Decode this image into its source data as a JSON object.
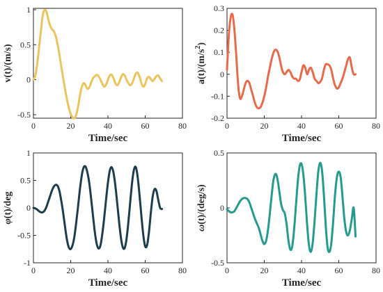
{
  "chart_data": [
    {
      "type": "line",
      "ylabel": "v(t)/(m/s)",
      "xlabel": "Time/sec",
      "xlim": [
        0,
        80
      ],
      "ylim": [
        -0.55,
        1.02
      ],
      "xticks": [
        0,
        20,
        40,
        60,
        80
      ],
      "yticks": [
        -0.5,
        0,
        0.5,
        1
      ],
      "ytick_labels": [
        "-0.5",
        "0",
        "0.5",
        "1"
      ],
      "color": "#EDC35C",
      "x": [
        0,
        1,
        2,
        3,
        4,
        5,
        6,
        7,
        8,
        9,
        10,
        11,
        12,
        13,
        14,
        15,
        16,
        17,
        18,
        19,
        20,
        21,
        22,
        23,
        24,
        25,
        26,
        27,
        28,
        29,
        30,
        31,
        32,
        33,
        34,
        35,
        36,
        37,
        38,
        39,
        40,
        41,
        42,
        43,
        44,
        45,
        46,
        47,
        48,
        49,
        50,
        51,
        52,
        53,
        54,
        55,
        56,
        57,
        58,
        59,
        60,
        61,
        62,
        63,
        64,
        65,
        66,
        67,
        68,
        69
      ],
      "y": [
        0,
        0.06,
        0.22,
        0.45,
        0.7,
        0.92,
        1.0,
        0.97,
        0.86,
        0.77,
        0.72,
        0.69,
        0.62,
        0.5,
        0.35,
        0.18,
        0.02,
        -0.14,
        -0.28,
        -0.4,
        -0.49,
        -0.54,
        -0.55,
        -0.5,
        -0.38,
        -0.22,
        -0.1,
        -0.05,
        -0.08,
        -0.13,
        -0.11,
        -0.04,
        0.02,
        0.05,
        0.07,
        0.05,
        0.0,
        -0.06,
        -0.1,
        -0.07,
        0.0,
        0.06,
        0.07,
        0.02,
        -0.05,
        -0.08,
        -0.04,
        0.03,
        0.08,
        0.06,
        0.0,
        -0.05,
        -0.08,
        -0.05,
        0.02,
        0.09,
        0.1,
        0.04,
        -0.05,
        -0.1,
        -0.06,
        0.02,
        0.04,
        0.01,
        -0.02,
        0.01,
        0.05,
        0.06,
        0.02,
        -0.02
      ]
    },
    {
      "type": "line",
      "ylabel": "a(t)/(m/s2)",
      "ylabel_main": "a(t)/(m/s",
      "ylabel_sup": "2",
      "ylabel_end": ")",
      "xlabel": "Time/sec",
      "xlim": [
        0,
        80
      ],
      "ylim": [
        -0.2,
        0.3
      ],
      "xticks": [
        0,
        20,
        40,
        60,
        80
      ],
      "yticks": [
        -0.2,
        -0.1,
        0,
        0.1,
        0.2,
        0.3
      ],
      "ytick_labels": [
        "-0.2",
        "-0.1",
        "0",
        "0.1",
        "0.2",
        "0.3"
      ],
      "color": "#E96A4B",
      "x": [
        0,
        1,
        2,
        3,
        4,
        5,
        6,
        7,
        8,
        9,
        10,
        11,
        12,
        13,
        14,
        15,
        16,
        17,
        18,
        19,
        20,
        21,
        22,
        23,
        24,
        25,
        26,
        27,
        28,
        29,
        30,
        31,
        32,
        33,
        34,
        35,
        36,
        37,
        38,
        39,
        40,
        41,
        42,
        43,
        44,
        45,
        46,
        47,
        48,
        49,
        50,
        51,
        52,
        53,
        54,
        55,
        56,
        57,
        58,
        59,
        60,
        61,
        62,
        63,
        64,
        65,
        66,
        67,
        68,
        69
      ],
      "y": [
        0.02,
        0.18,
        0.26,
        0.27,
        0.2,
        0.08,
        -0.05,
        -0.11,
        -0.1,
        -0.07,
        -0.04,
        -0.03,
        -0.04,
        -0.07,
        -0.1,
        -0.13,
        -0.15,
        -0.155,
        -0.15,
        -0.13,
        -0.1,
        -0.06,
        -0.01,
        0.03,
        0.07,
        0.1,
        0.112,
        0.105,
        0.08,
        0.04,
        0.01,
        0.0,
        0.01,
        0.02,
        0.01,
        -0.01,
        -0.02,
        -0.02,
        -0.03,
        -0.025,
        0.01,
        0.04,
        0.03,
        0.0,
        0.02,
        0.03,
        0.01,
        -0.02,
        -0.03,
        -0.04,
        -0.035,
        -0.02,
        0.02,
        0.045,
        0.045,
        0.04,
        0.02,
        -0.02,
        -0.05,
        -0.065,
        -0.06,
        -0.04,
        -0.02,
        0.01,
        0.04,
        0.07,
        0.075,
        0.03,
        0.0,
        0.0
      ]
    },
    {
      "type": "line",
      "ylabel": "φ(t)/deg",
      "ylabel_sym": "φ",
      "ylabel_rest": "(t)/deg",
      "xlabel": "Time/sec",
      "xlim": [
        0,
        80
      ],
      "ylim": [
        -1,
        1
      ],
      "xticks": [
        0,
        20,
        40,
        60,
        80
      ],
      "yticks": [
        -1,
        -0.5,
        0,
        0.5,
        1
      ],
      "ytick_labels": [
        "-1",
        "-0.5",
        "0",
        "0.5",
        "1"
      ],
      "color": "#1C3D4D",
      "x": [
        0,
        1,
        2,
        3,
        4,
        5,
        6,
        7,
        8,
        9,
        10,
        11,
        12,
        13,
        14,
        15,
        16,
        17,
        18,
        19,
        20,
        21,
        22,
        23,
        24,
        25,
        26,
        27,
        28,
        29,
        30,
        31,
        32,
        33,
        34,
        35,
        36,
        37,
        38,
        39,
        40,
        41,
        42,
        43,
        44,
        45,
        46,
        47,
        48,
        49,
        50,
        51,
        52,
        53,
        54,
        55,
        56,
        57,
        58,
        59,
        60,
        61,
        62,
        63,
        64,
        65,
        66,
        67,
        68,
        69
      ],
      "y": [
        0,
        -0.01,
        -0.03,
        -0.06,
        -0.08,
        -0.08,
        -0.05,
        0.02,
        0.12,
        0.22,
        0.32,
        0.39,
        0.42,
        0.4,
        0.3,
        0.12,
        -0.1,
        -0.35,
        -0.58,
        -0.72,
        -0.75,
        -0.68,
        -0.52,
        -0.26,
        0.04,
        0.35,
        0.6,
        0.74,
        0.75,
        0.64,
        0.45,
        0.16,
        -0.15,
        -0.45,
        -0.66,
        -0.74,
        -0.68,
        -0.47,
        -0.18,
        0.15,
        0.46,
        0.68,
        0.74,
        0.64,
        0.4,
        0.08,
        -0.26,
        -0.55,
        -0.72,
        -0.73,
        -0.56,
        -0.25,
        0.12,
        0.47,
        0.7,
        0.74,
        0.55,
        0.22,
        -0.16,
        -0.5,
        -0.7,
        -0.68,
        -0.45,
        -0.1,
        0.2,
        0.34,
        0.31,
        0.15,
        0.0,
        -0.02
      ]
    },
    {
      "type": "line",
      "ylabel": "ω(t)/(deg/s)",
      "ylabel_sym": "ω",
      "ylabel_rest": "(t)/(deg/s)",
      "xlabel": "Time/sec",
      "xlim": [
        0,
        80
      ],
      "ylim": [
        -0.5,
        0.5
      ],
      "xticks": [
        0,
        20,
        40,
        60,
        80
      ],
      "yticks": [
        -0.5,
        0,
        0.5
      ],
      "ytick_labels": [
        "-0.5",
        "0",
        "0.5"
      ],
      "color": "#239C8E",
      "x": [
        0,
        1,
        2,
        3,
        4,
        5,
        6,
        7,
        8,
        9,
        10,
        11,
        12,
        13,
        14,
        15,
        16,
        17,
        18,
        19,
        20,
        21,
        22,
        23,
        24,
        25,
        26,
        27,
        28,
        29,
        30,
        31,
        32,
        33,
        34,
        35,
        36,
        37,
        38,
        39,
        40,
        41,
        42,
        43,
        44,
        45,
        46,
        47,
        48,
        49,
        50,
        51,
        52,
        53,
        54,
        55,
        56,
        57,
        58,
        59,
        60,
        61,
        62,
        63,
        64,
        65,
        66,
        67,
        68,
        69
      ],
      "y": [
        -0.01,
        -0.03,
        -0.04,
        -0.04,
        -0.03,
        0.0,
        0.03,
        0.06,
        0.08,
        0.09,
        0.09,
        0.08,
        0.05,
        0.0,
        -0.05,
        -0.1,
        -0.14,
        -0.18,
        -0.24,
        -0.3,
        -0.33,
        -0.3,
        -0.2,
        -0.05,
        0.12,
        0.26,
        0.31,
        0.27,
        0.16,
        0.04,
        -0.02,
        -0.05,
        -0.15,
        -0.3,
        -0.38,
        -0.35,
        -0.2,
        0.02,
        0.24,
        0.38,
        0.4,
        0.3,
        0.1,
        -0.15,
        -0.34,
        -0.4,
        -0.32,
        -0.12,
        0.12,
        0.33,
        0.41,
        0.34,
        0.12,
        -0.16,
        -0.36,
        -0.4,
        -0.32,
        -0.12,
        0.12,
        0.28,
        0.33,
        0.28,
        0.1,
        -0.1,
        -0.22,
        -0.25,
        -0.2,
        -0.1,
        0.0,
        -0.26
      ]
    }
  ]
}
